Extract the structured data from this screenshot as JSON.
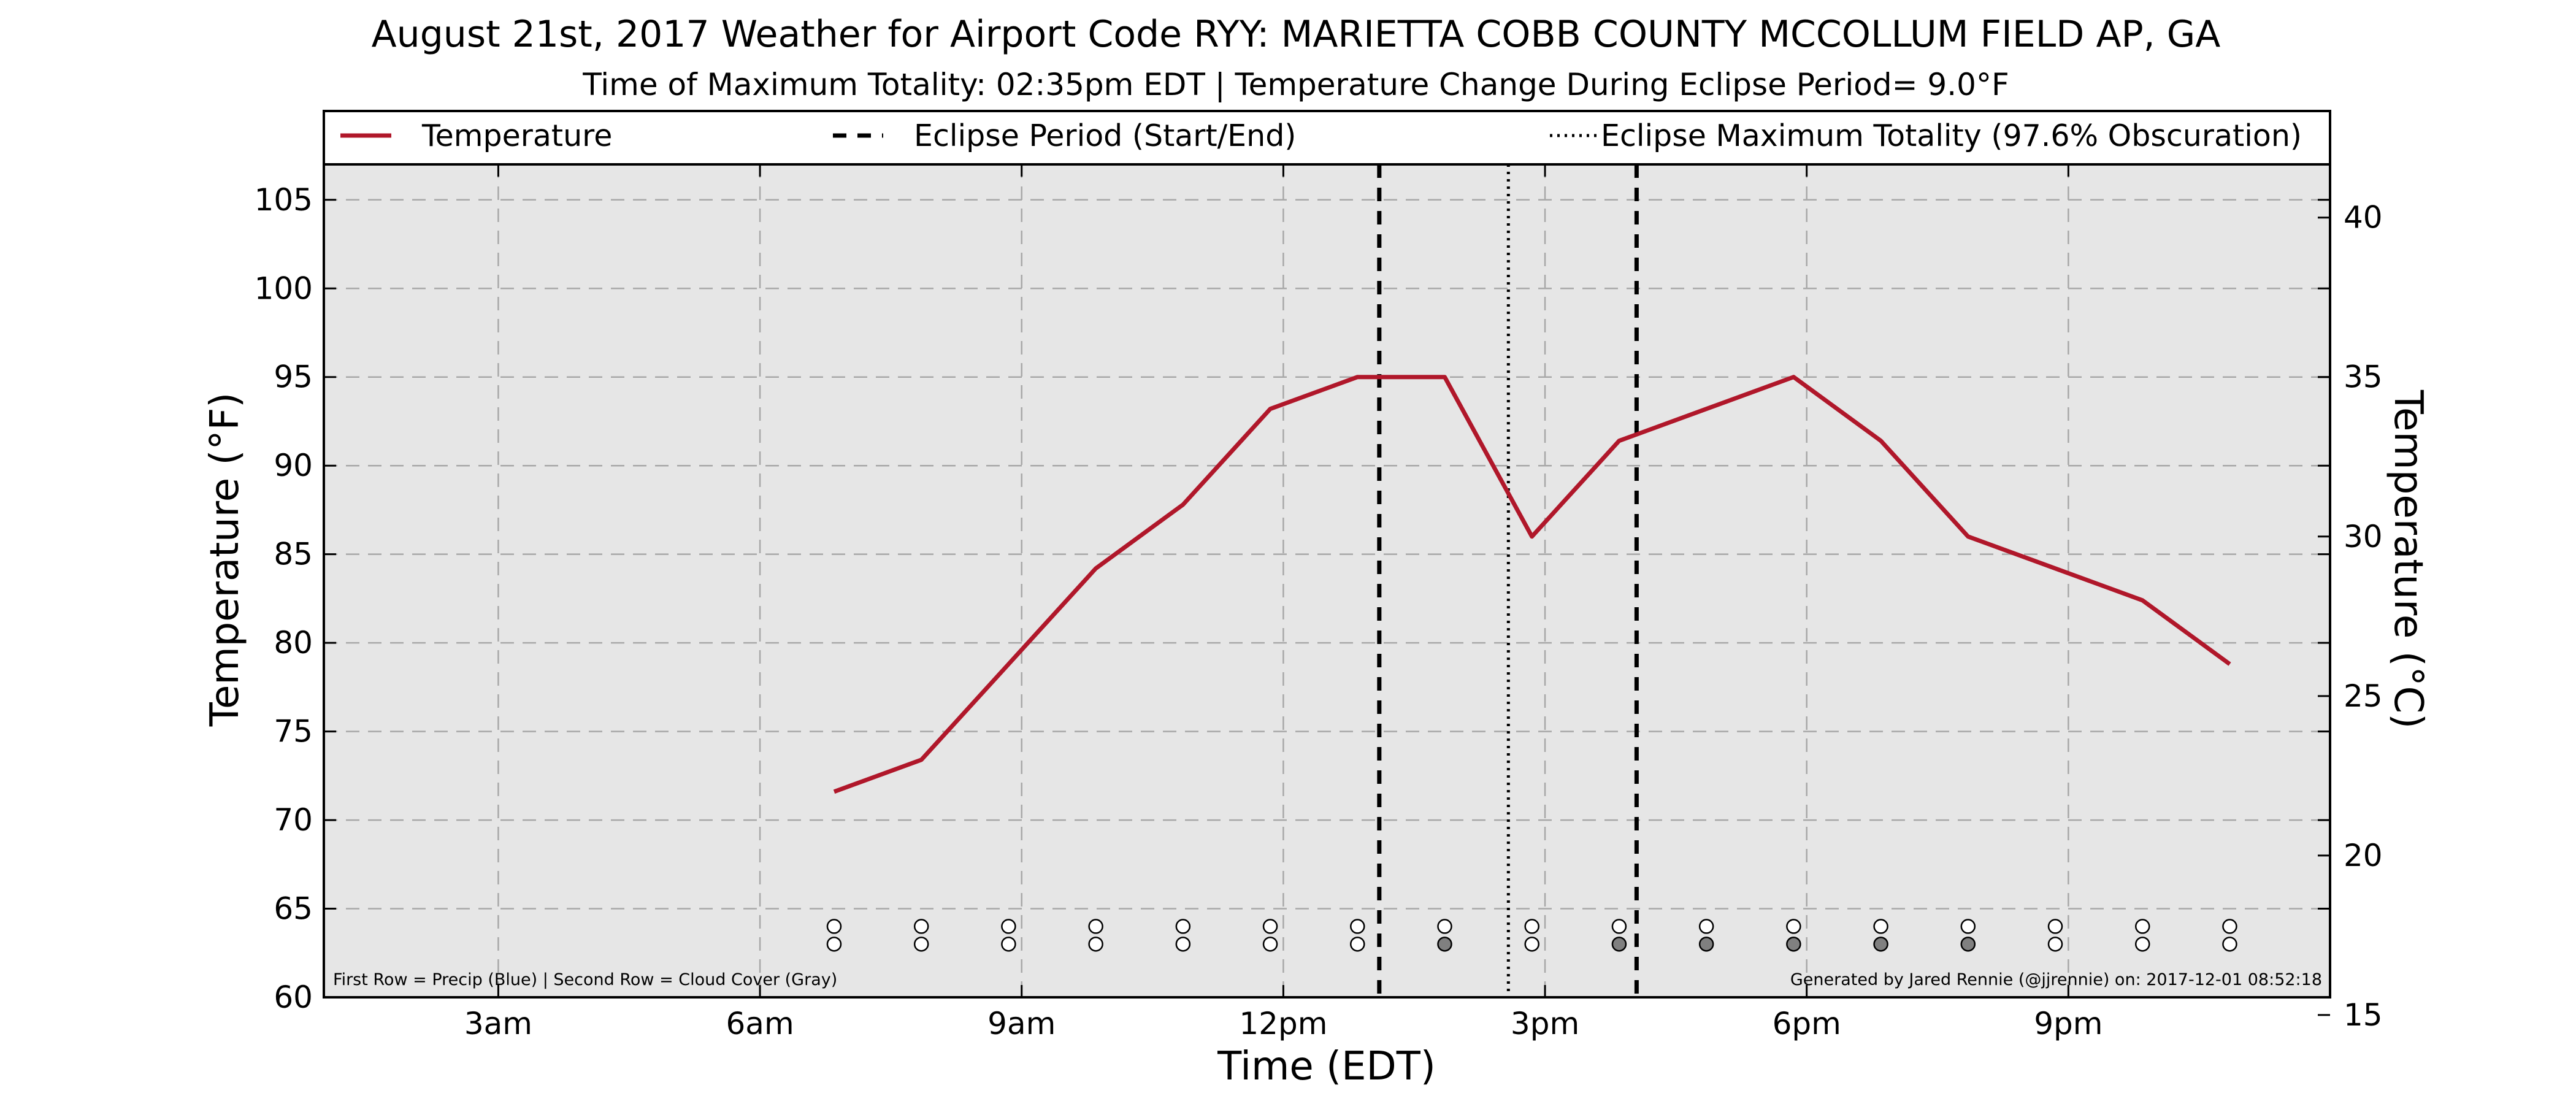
{
  "title": "August 21st, 2017 Weather for Airport Code RYY: MARIETTA COBB COUNTY MCCOLLUM FIELD AP, GA",
  "subtitle": "Time of Maximum Totality: 02:35pm EDT | Temperature Change During Eclipse Period= 9.0°F",
  "footnote_left": "First Row = Precip (Blue) | Second Row = Cloud Cover (Gray)",
  "footnote_right": "Generated by Jared Rennie (@jjrennie) on: 2017-12-01 08:52:18",
  "colors": {
    "temperature": "#b0172a",
    "plot_background": "#e6e6e6",
    "grid": "#a8a8a8",
    "cloud_filled": "#808080",
    "marker_empty": "#ffffff"
  },
  "chart_data": {
    "type": "line",
    "xlabel": "Time (EDT)",
    "ylabel": "Temperature (°F)",
    "ylabel_right": "Temperature (°C)",
    "xlim_hours": [
      1,
      24
    ],
    "ylim": [
      60,
      107
    ],
    "ylim_right": [
      15.556,
      41.667
    ],
    "x_ticks": [
      {
        "hour": 3,
        "label": "3am"
      },
      {
        "hour": 6,
        "label": "6am"
      },
      {
        "hour": 9,
        "label": "9am"
      },
      {
        "hour": 12,
        "label": "12pm"
      },
      {
        "hour": 15,
        "label": "3pm"
      },
      {
        "hour": 18,
        "label": "6pm"
      },
      {
        "hour": 21,
        "label": "9pm"
      }
    ],
    "y_ticks": [
      60,
      65,
      70,
      75,
      80,
      85,
      90,
      95,
      100,
      105
    ],
    "y_ticks_right": [
      15,
      20,
      25,
      30,
      35,
      40
    ],
    "grid": true,
    "legend_position": "top",
    "legend": [
      {
        "key": "temperature",
        "label": "Temperature"
      },
      {
        "key": "eclipse_period",
        "label": "Eclipse Period (Start/End)"
      },
      {
        "key": "eclipse_max",
        "label": "Eclipse Maximum Totality (97.6% Obscuration)"
      }
    ],
    "series": [
      {
        "name": "Temperature",
        "x": [
          6.85,
          7.85,
          8.85,
          9.85,
          10.85,
          11.85,
          12.85,
          13.85,
          14.85,
          15.85,
          16.85,
          17.85,
          18.85,
          19.85,
          20.85,
          21.85,
          22.85
        ],
        "y": [
          71.6,
          73.4,
          78.8,
          84.2,
          87.8,
          93.2,
          95.0,
          95.0,
          86.0,
          91.4,
          93.2,
          95.0,
          91.4,
          86.0,
          84.2,
          82.4,
          78.8
        ]
      }
    ],
    "eclipse_period_hours": [
      13.1,
      16.05
    ],
    "eclipse_max_hour": 14.58,
    "markers": {
      "x": [
        6.85,
        7.85,
        8.85,
        9.85,
        10.85,
        11.85,
        12.85,
        13.85,
        14.85,
        15.85,
        16.85,
        17.85,
        18.85,
        19.85,
        20.85,
        21.85,
        22.85
      ],
      "precip_row_value": 64,
      "cloud_row_value": 63,
      "precip_filled": [
        false,
        false,
        false,
        false,
        false,
        false,
        false,
        false,
        false,
        false,
        false,
        false,
        false,
        false,
        false,
        false,
        false
      ],
      "cloud_filled": [
        false,
        false,
        false,
        false,
        false,
        false,
        false,
        true,
        false,
        true,
        true,
        true,
        true,
        true,
        false,
        false,
        false
      ]
    }
  }
}
